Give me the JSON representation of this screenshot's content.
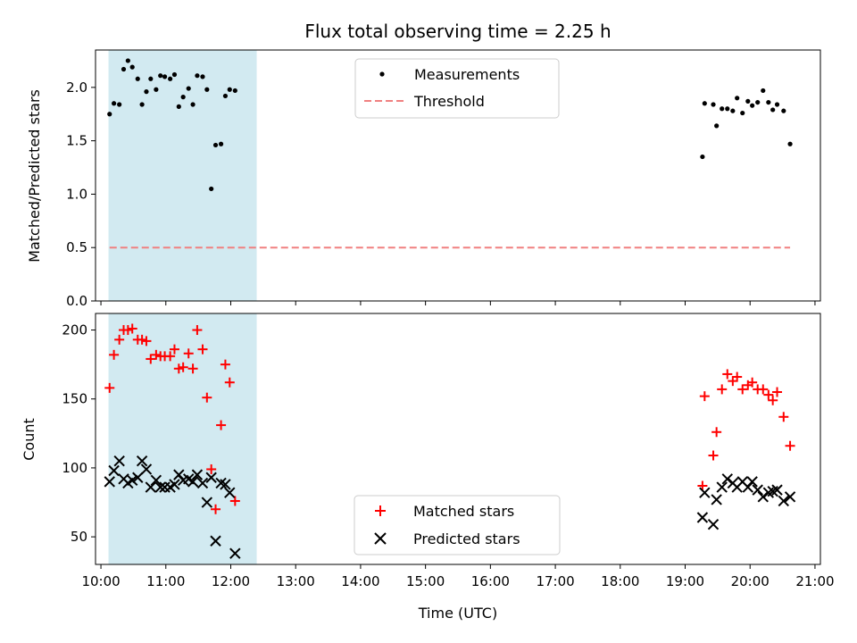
{
  "chart_data": [
    {
      "type": "scatter",
      "title": "Flux total observing time = 2.25 h",
      "xlabel": "",
      "ylabel": "Matched/Predicted stars",
      "ylim": [
        0,
        2.35
      ],
      "yticks": [
        0.0,
        0.5,
        1.0,
        1.5,
        2.0
      ],
      "ytick_labels": [
        "0.0",
        "0.5",
        "1.0",
        "1.5",
        "2.0"
      ],
      "grid": false,
      "legend_position": "top-center",
      "highlight_band": {
        "x_start": "10:07",
        "x_end": "12:24",
        "color": "#add8e6"
      },
      "series": [
        {
          "name": "Measurements",
          "marker": "dot",
          "color": "#000000",
          "points": [
            [
              "10:08",
              1.75
            ],
            [
              "10:12",
              1.85
            ],
            [
              "10:17",
              1.84
            ],
            [
              "10:21",
              2.17
            ],
            [
              "10:25",
              2.25
            ],
            [
              "10:29",
              2.19
            ],
            [
              "10:34",
              2.08
            ],
            [
              "10:38",
              1.84
            ],
            [
              "10:42",
              1.96
            ],
            [
              "10:46",
              2.08
            ],
            [
              "10:51",
              1.98
            ],
            [
              "10:55",
              2.11
            ],
            [
              "10:59",
              2.1
            ],
            [
              "11:04",
              2.08
            ],
            [
              "11:08",
              2.12
            ],
            [
              "11:12",
              1.82
            ],
            [
              "11:16",
              1.91
            ],
            [
              "11:21",
              1.99
            ],
            [
              "11:25",
              1.84
            ],
            [
              "11:29",
              2.11
            ],
            [
              "11:34",
              2.1
            ],
            [
              "11:38",
              1.98
            ],
            [
              "11:42",
              1.05
            ],
            [
              "11:46",
              1.46
            ],
            [
              "11:51",
              1.47
            ],
            [
              "11:55",
              1.92
            ],
            [
              "11:59",
              1.98
            ],
            [
              "12:04",
              1.97
            ],
            [
              "19:16",
              1.35
            ],
            [
              "19:18",
              1.85
            ],
            [
              "19:26",
              1.84
            ],
            [
              "19:29",
              1.64
            ],
            [
              "19:34",
              1.8
            ],
            [
              "19:39",
              1.8
            ],
            [
              "19:44",
              1.78
            ],
            [
              "19:48",
              1.9
            ],
            [
              "19:53",
              1.76
            ],
            [
              "19:58",
              1.87
            ],
            [
              "20:02",
              1.83
            ],
            [
              "20:07",
              1.86
            ],
            [
              "20:12",
              1.97
            ],
            [
              "20:17",
              1.86
            ],
            [
              "20:21",
              1.79
            ],
            [
              "20:25",
              1.84
            ],
            [
              "20:31",
              1.78
            ],
            [
              "20:37",
              1.47
            ]
          ]
        },
        {
          "name": "Threshold",
          "marker": "dashed-line",
          "color": "#f08080",
          "points": [
            [
              "10:08",
              0.5
            ],
            [
              "20:37",
              0.5
            ]
          ]
        }
      ]
    },
    {
      "type": "scatter",
      "title": "",
      "xlabel": "Time (UTC)",
      "ylabel": "Count",
      "ylim": [
        30,
        212
      ],
      "yticks": [
        50,
        100,
        150,
        200
      ],
      "ytick_labels": [
        "50",
        "100",
        "150",
        "200"
      ],
      "x_axis_type": "time",
      "xlim": [
        "09:55",
        "21:05"
      ],
      "xticks": [
        "10:00",
        "11:00",
        "12:00",
        "13:00",
        "14:00",
        "15:00",
        "16:00",
        "17:00",
        "18:00",
        "19:00",
        "20:00",
        "21:00"
      ],
      "xtick_labels": [
        "10:00",
        "11:00",
        "12:00",
        "13:00",
        "14:00",
        "15:00",
        "16:00",
        "17:00",
        "18:00",
        "19:00",
        "20:00",
        "21:00"
      ],
      "grid": false,
      "legend_position": "bottom-center",
      "highlight_band": {
        "x_start": "10:07",
        "x_end": "12:24",
        "color": "#add8e6"
      },
      "series": [
        {
          "name": "Matched stars",
          "marker": "plus",
          "color": "#ff0000",
          "points": [
            [
              "10:08",
              158
            ],
            [
              "10:12",
              182
            ],
            [
              "10:17",
              193
            ],
            [
              "10:21",
              200
            ],
            [
              "10:25",
              200
            ],
            [
              "10:29",
              201
            ],
            [
              "10:34",
              193
            ],
            [
              "10:38",
              193
            ],
            [
              "10:42",
              192
            ],
            [
              "10:46",
              179
            ],
            [
              "10:51",
              182
            ],
            [
              "10:55",
              181
            ],
            [
              "10:59",
              181
            ],
            [
              "11:04",
              181
            ],
            [
              "11:08",
              186
            ],
            [
              "11:12",
              172
            ],
            [
              "11:16",
              173
            ],
            [
              "11:21",
              183
            ],
            [
              "11:25",
              172
            ],
            [
              "11:29",
              200
            ],
            [
              "11:34",
              186
            ],
            [
              "11:38",
              151
            ],
            [
              "11:42",
              99
            ],
            [
              "11:46",
              70
            ],
            [
              "11:51",
              131
            ],
            [
              "11:55",
              175
            ],
            [
              "11:59",
              162
            ],
            [
              "12:04",
              76
            ],
            [
              "19:16",
              87
            ],
            [
              "19:18",
              152
            ],
            [
              "19:26",
              109
            ],
            [
              "19:29",
              126
            ],
            [
              "19:34",
              157
            ],
            [
              "19:39",
              168
            ],
            [
              "19:44",
              163
            ],
            [
              "19:48",
              166
            ],
            [
              "19:53",
              157
            ],
            [
              "19:58",
              160
            ],
            [
              "20:02",
              162
            ],
            [
              "20:07",
              157
            ],
            [
              "20:12",
              157
            ],
            [
              "20:17",
              153
            ],
            [
              "20:21",
              149
            ],
            [
              "20:25",
              155
            ],
            [
              "20:31",
              137
            ],
            [
              "20:37",
              116
            ]
          ]
        },
        {
          "name": "Predicted stars",
          "marker": "x",
          "color": "#000000",
          "points": [
            [
              "10:08",
              90
            ],
            [
              "10:12",
              98
            ],
            [
              "10:17",
              105
            ],
            [
              "10:21",
              92
            ],
            [
              "10:25",
              89
            ],
            [
              "10:29",
              91
            ],
            [
              "10:34",
              93
            ],
            [
              "10:38",
              105
            ],
            [
              "10:42",
              99
            ],
            [
              "10:46",
              86
            ],
            [
              "10:51",
              91
            ],
            [
              "10:55",
              86
            ],
            [
              "10:59",
              86
            ],
            [
              "11:04",
              86
            ],
            [
              "11:08",
              88
            ],
            [
              "11:12",
              95
            ],
            [
              "11:16",
              91
            ],
            [
              "11:21",
              92
            ],
            [
              "11:25",
              90
            ],
            [
              "11:29",
              95
            ],
            [
              "11:34",
              89
            ],
            [
              "11:38",
              75
            ],
            [
              "11:42",
              93
            ],
            [
              "11:46",
              47
            ],
            [
              "11:51",
              89
            ],
            [
              "11:55",
              88
            ],
            [
              "11:59",
              82
            ],
            [
              "12:04",
              38
            ],
            [
              "19:16",
              64
            ],
            [
              "19:18",
              82
            ],
            [
              "19:26",
              59
            ],
            [
              "19:29",
              77
            ],
            [
              "19:34",
              86
            ],
            [
              "19:39",
              92
            ],
            [
              "19:44",
              89
            ],
            [
              "19:48",
              86
            ],
            [
              "19:53",
              90
            ],
            [
              "19:58",
              86
            ],
            [
              "20:02",
              90
            ],
            [
              "20:07",
              84
            ],
            [
              "20:12",
              79
            ],
            [
              "20:17",
              82
            ],
            [
              "20:21",
              83
            ],
            [
              "20:25",
              84
            ],
            [
              "20:31",
              76
            ],
            [
              "20:37",
              79
            ]
          ]
        }
      ]
    }
  ]
}
